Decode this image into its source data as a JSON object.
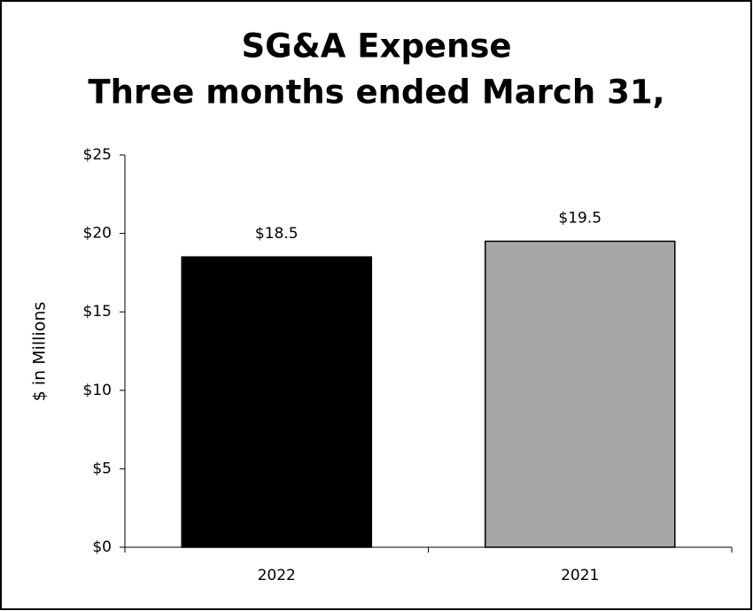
{
  "chart_data": {
    "type": "bar",
    "title": [
      "SG&A Expense",
      "Three months ended March 31,"
    ],
    "y_label": "$ in Millions",
    "categories": [
      "2022",
      "2021"
    ],
    "values": [
      18.5,
      19.5
    ],
    "value_labels": [
      "$18.5",
      "$19.5"
    ],
    "colors": [
      "#000000",
      "#a6a6a6"
    ],
    "ylim": [
      0,
      25
    ],
    "yticks": [
      {
        "value": 0,
        "label": "$0"
      },
      {
        "value": 5,
        "label": "$5"
      },
      {
        "value": 10,
        "label": "$10"
      },
      {
        "value": 15,
        "label": "$15"
      },
      {
        "value": 20,
        "label": "$20"
      },
      {
        "value": 25,
        "label": "$25"
      }
    ],
    "grid": false
  }
}
